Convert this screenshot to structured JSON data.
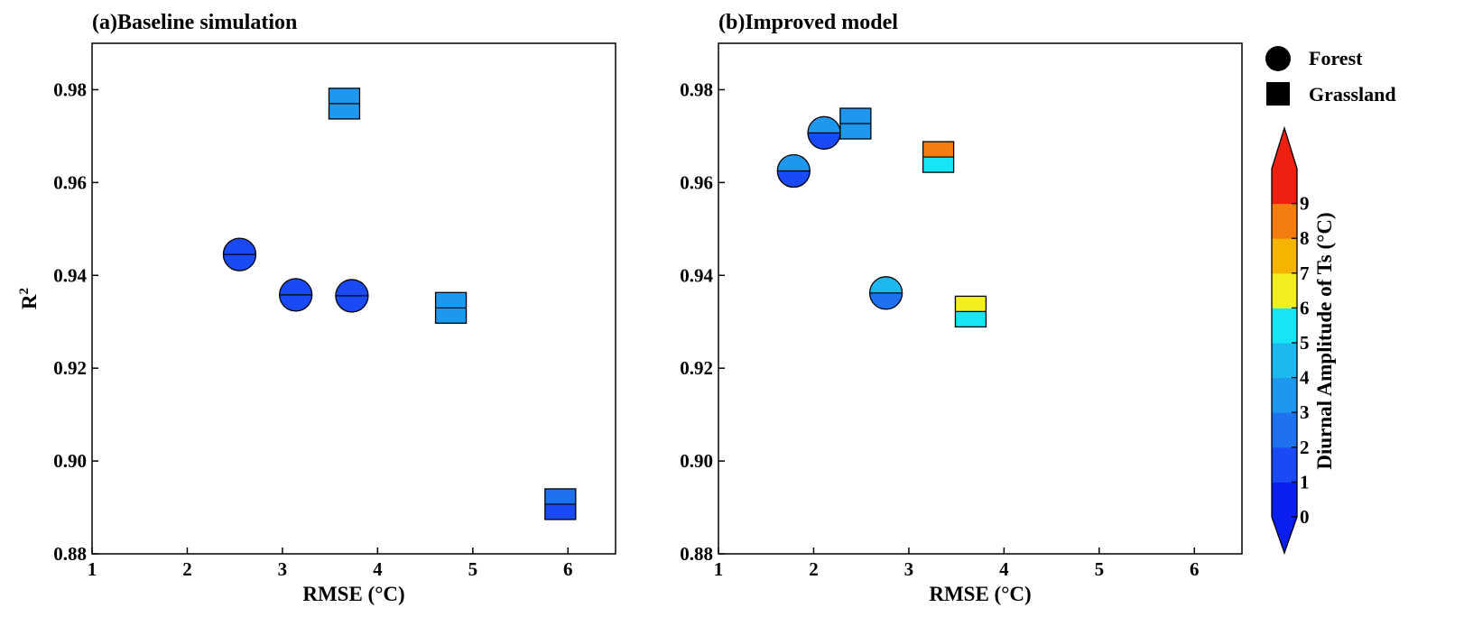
{
  "chart_data": [
    {
      "type": "scatter",
      "title": "(a)Baseline simulation",
      "xlabel": "RMSE (°C)",
      "ylabel": "R",
      "ylabel_superscript": "2",
      "xlim": [
        1,
        6.5
      ],
      "ylim": [
        0.88,
        0.99
      ],
      "x_ticks": [
        "1",
        "2",
        "3",
        "4",
        "5",
        "6"
      ],
      "y_ticks": [
        "0.88",
        "0.90",
        "0.92",
        "0.94",
        "0.96",
        "0.98"
      ],
      "points": [
        {
          "type": "Forest",
          "x": 2.55,
          "y": 0.9445,
          "upper_value": 1.5,
          "lower_value": 1.5
        },
        {
          "type": "Forest",
          "x": 3.14,
          "y": 0.9358,
          "upper_value": 1.5,
          "lower_value": 1.5
        },
        {
          "type": "Forest",
          "x": 3.73,
          "y": 0.9356,
          "upper_value": 1.5,
          "lower_value": 1.5
        },
        {
          "type": "Grassland",
          "x": 3.65,
          "y": 0.977,
          "upper_value": 3.5,
          "lower_value": 3.5
        },
        {
          "type": "Grassland",
          "x": 4.77,
          "y": 0.933,
          "upper_value": 3.5,
          "lower_value": 3.5
        },
        {
          "type": "Grassland",
          "x": 5.92,
          "y": 0.8907,
          "upper_value": 2.5,
          "lower_value": 1.5
        }
      ]
    },
    {
      "type": "scatter",
      "title": "(b)Improved model",
      "xlabel": "RMSE (°C)",
      "ylabel": "",
      "xlim": [
        1,
        6.5
      ],
      "ylim": [
        0.88,
        0.99
      ],
      "x_ticks": [
        "1",
        "2",
        "3",
        "4",
        "5",
        "6"
      ],
      "y_ticks": [
        "0.88",
        "0.90",
        "0.92",
        "0.94",
        "0.96",
        "0.98"
      ],
      "points": [
        {
          "type": "Forest",
          "x": 1.79,
          "y": 0.9625,
          "upper_value": 3.5,
          "lower_value": 1.5
        },
        {
          "type": "Forest",
          "x": 2.11,
          "y": 0.9707,
          "upper_value": 3.5,
          "lower_value": 1.5
        },
        {
          "type": "Forest",
          "x": 2.76,
          "y": 0.9362,
          "upper_value": 4.5,
          "lower_value": 2.5
        },
        {
          "type": "Grassland",
          "x": 2.44,
          "y": 0.9727,
          "upper_value": 3.5,
          "lower_value": 3.5
        },
        {
          "type": "Grassland",
          "x": 3.31,
          "y": 0.9655,
          "upper_value": 8.5,
          "lower_value": 5.5
        },
        {
          "type": "Grassland",
          "x": 3.65,
          "y": 0.9322,
          "upper_value": 6.5,
          "lower_value": 5.5
        }
      ]
    }
  ],
  "legend": {
    "items": [
      {
        "label": "Forest",
        "marker": "circle"
      },
      {
        "label": "Grassland",
        "marker": "square"
      }
    ]
  },
  "colorbar": {
    "label": "Diurnal Amplitude of Ts (°C)",
    "ticks": [
      "0",
      "1",
      "2",
      "3",
      "4",
      "5",
      "6",
      "7",
      "8",
      "9"
    ],
    "range": [
      0,
      9
    ],
    "extend": "both",
    "colors": [
      "#0a1ef0",
      "#1a4af5",
      "#1e72f0",
      "#1e98ee",
      "#1eb8f0",
      "#16e6f4",
      "#f2ee20",
      "#f5b400",
      "#f57c10",
      "#f02010"
    ]
  }
}
